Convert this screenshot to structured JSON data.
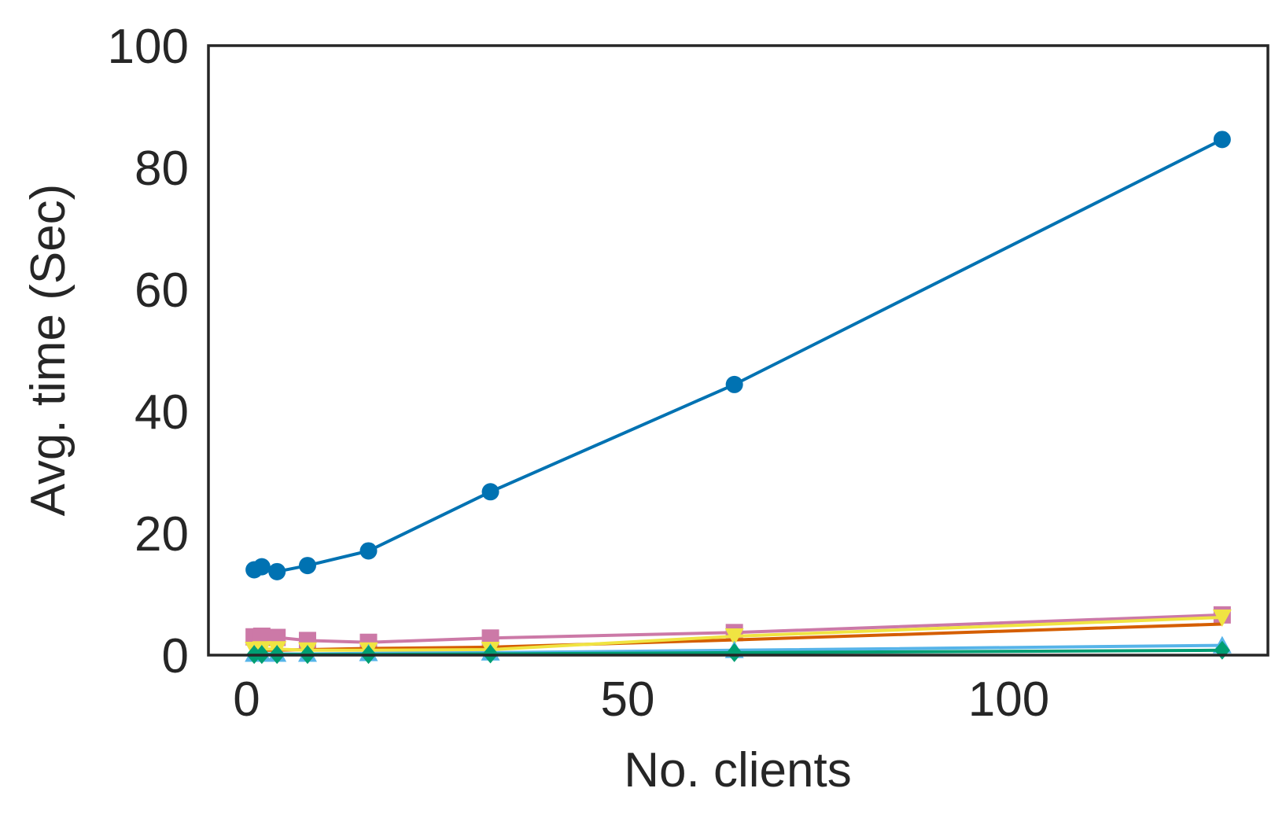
{
  "chart_data": {
    "type": "line",
    "xlabel": "No. clients",
    "ylabel": "Avg. time (Sec)",
    "xlim": [
      -5,
      134
    ],
    "ylim": [
      0,
      100
    ],
    "xticks": [
      0,
      50,
      100
    ],
    "yticks": [
      0,
      20,
      40,
      60,
      80,
      100
    ],
    "grid": false,
    "legend": "none",
    "x": [
      1,
      2,
      4,
      8,
      16,
      32,
      64,
      128
    ],
    "series": [
      {
        "color": "#0072B2",
        "marker": "circle",
        "values": [
          14.0,
          14.5,
          13.7,
          14.7,
          17.1,
          26.8,
          44.4,
          84.6
        ]
      },
      {
        "color": "#CC79A7",
        "marker": "square",
        "values": [
          3.0,
          3.1,
          2.9,
          2.4,
          2.1,
          2.8,
          3.7,
          6.6
        ]
      },
      {
        "color": "#D55E00",
        "marker": "none",
        "values": [
          0.7,
          0.8,
          0.8,
          0.9,
          1.1,
          1.3,
          2.5,
          5.1
        ]
      },
      {
        "color": "#F0E442",
        "marker": "triangle-down",
        "values": [
          0.9,
          1.0,
          1.0,
          0.8,
          0.8,
          0.9,
          3.1,
          6.2
        ]
      },
      {
        "color": "#56B4E9",
        "marker": "triangle-up",
        "values": [
          0.2,
          0.2,
          0.2,
          0.2,
          0.3,
          0.4,
          0.8,
          1.6
        ]
      },
      {
        "color": "#009E73",
        "marker": "diamond",
        "values": [
          0.1,
          0.1,
          0.1,
          0.1,
          0.1,
          0.2,
          0.4,
          0.8
        ]
      }
    ]
  }
}
